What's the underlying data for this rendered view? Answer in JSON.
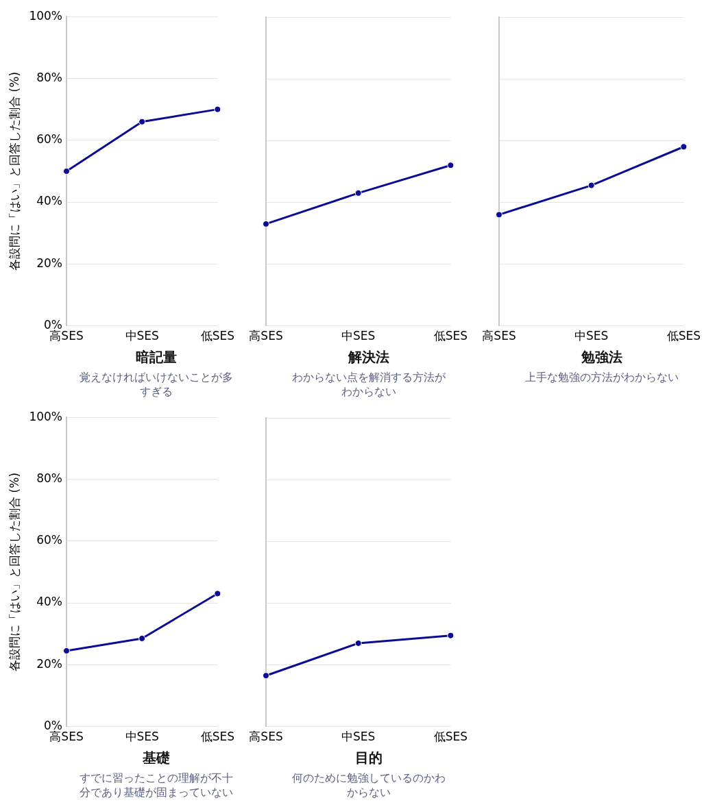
{
  "chart_data": [
    {
      "type": "line",
      "categories": [
        "高SES",
        "中SES",
        "低SES"
      ],
      "series": [
        {
          "color": "#0b0b96",
          "values": [
            50,
            66,
            70
          ]
        }
      ],
      "ylim": [
        0,
        100
      ],
      "yticks": [
        {
          "value": 0,
          "label": "0%"
        },
        {
          "value": 20,
          "label": "20%"
        },
        {
          "value": 40,
          "label": "40%"
        },
        {
          "value": 60,
          "label": "60%"
        },
        {
          "value": 80,
          "label": "80%"
        },
        {
          "value": 100,
          "label": "100%"
        }
      ],
      "ylabel": "各設問に「はい」と回答した割合 (%)",
      "xlabel": "暗記量",
      "subtitle": "覚えなければいけないことが多すぎる",
      "grid": "y",
      "marker": "circle",
      "line_style": "solid"
    },
    {
      "type": "line",
      "categories": [
        "高SES",
        "中SES",
        "低SES"
      ],
      "series": [
        {
          "color": "#0b0b96",
          "values": [
            33,
            43,
            52
          ]
        }
      ],
      "ylim": [
        0,
        100
      ],
      "yticks": [
        0,
        20,
        40,
        60,
        80,
        100
      ],
      "xlabel": "解決法",
      "subtitle": "わからない点を解消する方法がわからない",
      "grid": "y",
      "marker": "circle",
      "line_style": "solid",
      "tick_labels": "x"
    },
    {
      "type": "line",
      "categories": [
        "高SES",
        "中SES",
        "低SES"
      ],
      "series": [
        {
          "color": "#0b0b96",
          "values": [
            36,
            45.5,
            58
          ]
        }
      ],
      "ylim": [
        0,
        100
      ],
      "yticks": [
        0,
        20,
        40,
        60,
        80,
        100
      ],
      "xlabel": "勉強法",
      "subtitle": "上手な勉強の方法がわからない",
      "grid": "y",
      "marker": "circle",
      "line_style": "solid",
      "tick_labels": "x"
    },
    {
      "type": "line",
      "categories": [
        "高SES",
        "中SES",
        "低SES"
      ],
      "series": [
        {
          "color": "#0b0b96",
          "values": [
            24.5,
            28.5,
            43
          ]
        }
      ],
      "ylim": [
        0,
        100
      ],
      "yticks": [
        {
          "value": 0,
          "label": "0%"
        },
        {
          "value": 20,
          "label": "20%"
        },
        {
          "value": 40,
          "label": "40%"
        },
        {
          "value": 60,
          "label": "60%"
        },
        {
          "value": 80,
          "label": "80%"
        },
        {
          "value": 100,
          "label": "100%"
        }
      ],
      "ylabel": "各設問に「はい」と回答した割合 (%)",
      "xlabel": "基礎",
      "subtitle": "すでに習ったことの理解が不十分であり基礎が固まっていない",
      "grid": "y",
      "marker": "circle",
      "line_style": "solid"
    },
    {
      "type": "line",
      "categories": [
        "高SES",
        "中SES",
        "低SES"
      ],
      "series": [
        {
          "color": "#0b0b96",
          "values": [
            16.5,
            27,
            29.5
          ]
        }
      ],
      "ylim": [
        0,
        100
      ],
      "yticks": [
        0,
        20,
        40,
        60,
        80,
        100
      ],
      "xlabel": "目的",
      "subtitle": "何のために勉強しているのかわからない",
      "grid": "y",
      "marker": "circle",
      "line_style": "solid",
      "tick_labels": "x"
    }
  ]
}
